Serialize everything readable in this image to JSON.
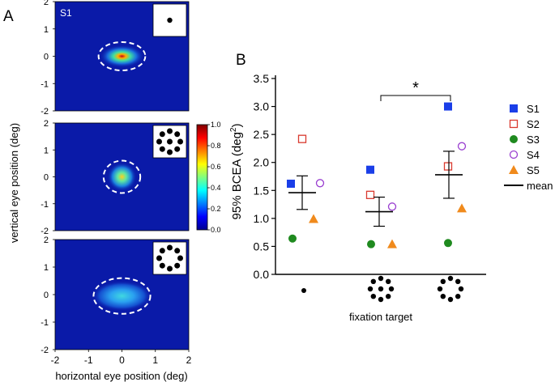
{
  "panel_a": {
    "letter": "A",
    "subject_label": "S1",
    "xlabel": "horizontal eye position (deg)",
    "ylabel": "vertical eye position (deg)",
    "x_ticks": [
      "-2",
      "-1",
      "0",
      "1",
      "2"
    ],
    "y_ticks": [
      "2",
      "1",
      "0",
      "-1",
      "-2"
    ],
    "colorbar_ticks": [
      "1.0",
      "0.8",
      "0.6",
      "0.4",
      "0.2",
      "0.0"
    ],
    "colors": {
      "field": "#0a1aa8",
      "ellipse": "#ffffff"
    },
    "maps": [
      {
        "target": "single dot",
        "ellipse": {
          "cx": 0.0,
          "cy": 0.0,
          "rx": 0.7,
          "ry": 0.52
        }
      },
      {
        "target": "dot ring with center",
        "ellipse": {
          "cx": 0.0,
          "cy": 0.0,
          "rx": 0.55,
          "ry": 0.6
        }
      },
      {
        "target": "dot ring",
        "ellipse": {
          "cx": 0.0,
          "cy": -0.05,
          "rx": 0.85,
          "ry": 0.65
        }
      }
    ]
  },
  "chart_data": {
    "type": "scatter",
    "letter": "B",
    "xlabel": "fixation target",
    "ylabel": "95% BCEA (deg",
    "ylabel_sup": "2",
    "ylabel_close": ")",
    "yticks": [
      "0.0",
      "0.5",
      "1.0",
      "1.5",
      "2.0",
      "2.5",
      "3.0",
      "3.5"
    ],
    "ylim": [
      0,
      3.5
    ],
    "categories": [
      "single dot",
      "dot ring with center",
      "dot ring"
    ],
    "significance": "*",
    "series": [
      {
        "name": "S1",
        "marker": "square",
        "color": "#1a3ee8",
        "values": [
          1.62,
          1.87,
          3.0
        ]
      },
      {
        "name": "S2",
        "marker": "open-square",
        "color": "#d93a2f",
        "values": [
          2.42,
          1.42,
          1.93
        ]
      },
      {
        "name": "S3",
        "marker": "circle",
        "color": "#1f8a1f",
        "values": [
          0.64,
          0.54,
          0.56
        ]
      },
      {
        "name": "S4",
        "marker": "open-circle",
        "color": "#9a3fd0",
        "values": [
          1.63,
          1.21,
          2.29
        ]
      },
      {
        "name": "S5",
        "marker": "triangle",
        "color": "#f08a1c",
        "values": [
          0.99,
          0.54,
          1.18
        ]
      }
    ],
    "mean": {
      "name": "mean",
      "values": [
        1.46,
        1.12,
        1.78
      ],
      "error_low": [
        1.16,
        0.86,
        1.36
      ],
      "error_high": [
        1.76,
        1.38,
        2.2
      ]
    },
    "legend": [
      "S1",
      "S2",
      "S3",
      "S4",
      "S5",
      "mean"
    ]
  }
}
